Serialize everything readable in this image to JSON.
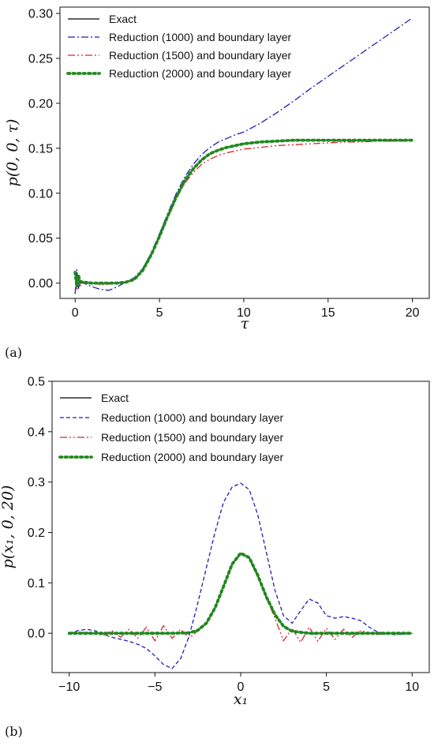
{
  "chart_data": [
    {
      "type": "line",
      "panel_label": "(a)",
      "xlabel": "τ",
      "ylabel": "p(0, 0, τ)",
      "xlim": [
        -0.9,
        21.0
      ],
      "ylim": [
        -0.017,
        0.307
      ],
      "xticks": [
        0,
        5,
        10,
        15,
        20
      ],
      "xtick_labels": [
        "0",
        "5",
        "10",
        "15",
        "20"
      ],
      "yticks": [
        0.0,
        0.05,
        0.1,
        0.15,
        0.2,
        0.25,
        0.3
      ],
      "ytick_labels": [
        "0.00",
        "0.05",
        "0.10",
        "0.15",
        "0.20",
        "0.25",
        "0.30"
      ],
      "legend_position": "upper-left",
      "grid": false,
      "series": [
        {
          "name": "Exact",
          "color": "#000000",
          "style": "solid",
          "x": [
            0,
            0.5,
            1,
            1.5,
            2,
            2.5,
            3,
            3.5,
            4,
            4.5,
            5,
            5.5,
            6,
            6.5,
            7,
            7.5,
            8,
            8.5,
            9,
            9.5,
            10,
            11,
            12,
            13,
            14,
            15,
            16,
            17,
            18,
            19,
            20
          ],
          "y": [
            0.0,
            0.0,
            0.0,
            0.0,
            0.0,
            0.0,
            0.001,
            0.004,
            0.014,
            0.031,
            0.052,
            0.075,
            0.096,
            0.114,
            0.127,
            0.137,
            0.144,
            0.148,
            0.151,
            0.153,
            0.155,
            0.157,
            0.158,
            0.159,
            0.159,
            0.159,
            0.159,
            0.159,
            0.159,
            0.159,
            0.159
          ]
        },
        {
          "name": "Reduction (1000) and boundary layer",
          "color": "#1f1fb4",
          "style": "dashdot",
          "x": [
            0,
            0.1,
            0.2,
            0.3,
            0.5,
            1,
            1.5,
            2,
            2.5,
            3,
            3.5,
            4,
            4.5,
            5,
            5.5,
            6,
            6.5,
            7,
            7.5,
            8,
            8.5,
            9,
            9.5,
            10,
            11,
            12,
            13,
            14,
            15,
            16,
            17,
            18,
            19,
            20
          ],
          "y": [
            -0.012,
            0.015,
            -0.006,
            0.004,
            0.0,
            -0.004,
            -0.007,
            -0.008,
            -0.004,
            0.001,
            0.006,
            0.016,
            0.033,
            0.055,
            0.078,
            0.1,
            0.118,
            0.132,
            0.143,
            0.151,
            0.157,
            0.161,
            0.165,
            0.168,
            0.178,
            0.19,
            0.203,
            0.217,
            0.23,
            0.243,
            0.256,
            0.269,
            0.282,
            0.295
          ]
        },
        {
          "name": "Reduction (1500) and boundary layer",
          "color": "#d62728",
          "style": "dashdotdot",
          "x": [
            0,
            0.1,
            0.2,
            0.3,
            0.5,
            1,
            1.5,
            2,
            2.5,
            3,
            3.5,
            4,
            4.5,
            5,
            5.5,
            6,
            6.5,
            7,
            7.5,
            8,
            8.5,
            9,
            9.5,
            10,
            11,
            12,
            13,
            14,
            15,
            16,
            17,
            18,
            19,
            20
          ],
          "y": [
            0.006,
            -0.008,
            0.01,
            -0.003,
            0.002,
            0.0,
            -0.002,
            -0.001,
            0.0,
            0.001,
            0.005,
            0.014,
            0.03,
            0.051,
            0.073,
            0.094,
            0.111,
            0.123,
            0.132,
            0.138,
            0.142,
            0.145,
            0.147,
            0.149,
            0.151,
            0.153,
            0.154,
            0.155,
            0.156,
            0.157,
            0.157,
            0.158,
            0.158,
            0.158
          ]
        },
        {
          "name": "Reduction (2000) and boundary layer",
          "color": "#1e8a1e",
          "style": "dotted",
          "x": [
            0,
            0.1,
            0.2,
            0.3,
            0.5,
            1,
            1.5,
            2,
            2.5,
            3,
            3.5,
            4,
            4.5,
            5,
            5.5,
            6,
            6.5,
            7,
            7.5,
            8,
            8.5,
            9,
            9.5,
            10,
            11,
            12,
            13,
            14,
            15,
            16,
            17,
            18,
            19,
            20
          ],
          "y": [
            0.012,
            -0.004,
            0.008,
            0.002,
            0.001,
            0.0,
            0.0,
            0.0,
            0.0,
            0.001,
            0.004,
            0.014,
            0.031,
            0.052,
            0.075,
            0.096,
            0.114,
            0.127,
            0.137,
            0.144,
            0.148,
            0.151,
            0.153,
            0.155,
            0.157,
            0.158,
            0.159,
            0.159,
            0.159,
            0.159,
            0.159,
            0.159,
            0.159,
            0.159
          ]
        }
      ]
    },
    {
      "type": "line",
      "panel_label": "(b)",
      "xlabel": "x₁",
      "ylabel": "p(x₁, 0, 20)",
      "xlim": [
        -11.0,
        11.0
      ],
      "ylim": [
        -0.078,
        0.5
      ],
      "xticks": [
        -10,
        -5,
        0,
        5,
        10
      ],
      "xtick_labels": [
        "−10",
        "−5",
        "0",
        "5",
        "10"
      ],
      "yticks": [
        0.0,
        0.1,
        0.2,
        0.3,
        0.4,
        0.5
      ],
      "ytick_labels": [
        "0.0",
        "0.1",
        "0.2",
        "0.3",
        "0.4",
        "0.5"
      ],
      "legend_position": "upper-left",
      "grid": false,
      "series": [
        {
          "name": "Exact",
          "color": "#000000",
          "style": "solid",
          "x": [
            -10,
            -8,
            -6,
            -4,
            -3,
            -2.5,
            -2,
            -1.5,
            -1,
            -0.5,
            0,
            0.5,
            1,
            1.5,
            2,
            2.5,
            3,
            4,
            6,
            8,
            10
          ],
          "y": [
            0.0,
            0.0,
            0.0,
            0.0,
            0.001,
            0.006,
            0.02,
            0.05,
            0.093,
            0.137,
            0.159,
            0.15,
            0.115,
            0.072,
            0.037,
            0.014,
            0.004,
            0.0,
            0.0,
            0.0,
            0.0
          ]
        },
        {
          "name": "Reduction (1000) and boundary layer",
          "color": "#1f1fb4",
          "style": "dashed",
          "x": [
            -10,
            -9.5,
            -9,
            -8.5,
            -8,
            -7.5,
            -7,
            -6.5,
            -6,
            -5.5,
            -5,
            -4.5,
            -4,
            -3.5,
            -3,
            -2.5,
            -2,
            -1.5,
            -1,
            -0.5,
            0,
            0.5,
            1,
            1.5,
            2,
            2.5,
            3,
            3.5,
            4,
            4.5,
            5,
            5.5,
            6,
            6.5,
            7,
            7.5,
            8,
            9,
            10
          ],
          "y": [
            0.0,
            0.005,
            0.008,
            0.005,
            -0.002,
            -0.008,
            -0.012,
            -0.016,
            -0.022,
            -0.03,
            -0.045,
            -0.062,
            -0.07,
            -0.05,
            -0.005,
            0.06,
            0.13,
            0.2,
            0.26,
            0.29,
            0.298,
            0.285,
            0.235,
            0.16,
            0.085,
            0.035,
            0.02,
            0.045,
            0.068,
            0.06,
            0.035,
            0.03,
            0.033,
            0.03,
            0.025,
            0.012,
            0.002,
            -0.003,
            0.0
          ]
        },
        {
          "name": "Reduction (1500) and boundary layer",
          "color": "#d62728",
          "style": "dashdotdot",
          "x": [
            -10,
            -9,
            -8,
            -7.5,
            -7,
            -6.5,
            -6,
            -5.5,
            -5,
            -4.5,
            -4,
            -3.5,
            -3,
            -2.5,
            -2,
            -1.5,
            -1,
            -0.5,
            0,
            0.5,
            1,
            1.5,
            2,
            2.5,
            3,
            3.5,
            4,
            4.5,
            5,
            5.5,
            6,
            6.5,
            7,
            8,
            9,
            10
          ],
          "y": [
            0.0,
            0.002,
            -0.004,
            0.005,
            -0.008,
            0.008,
            -0.01,
            0.012,
            -0.015,
            0.015,
            -0.01,
            0.008,
            -0.01,
            0.005,
            0.02,
            0.05,
            0.093,
            0.137,
            0.156,
            0.148,
            0.112,
            0.07,
            0.03,
            -0.015,
            0.01,
            -0.018,
            0.012,
            -0.016,
            0.01,
            -0.012,
            0.008,
            -0.008,
            0.005,
            -0.003,
            0.001,
            0.0
          ]
        },
        {
          "name": "Reduction (2000) and boundary layer",
          "color": "#1e8a1e",
          "style": "dotted",
          "x": [
            -10,
            -8,
            -6,
            -4,
            -3,
            -2.5,
            -2,
            -1.5,
            -1,
            -0.5,
            0,
            0.5,
            1,
            1.5,
            2,
            2.5,
            3,
            4,
            6,
            8,
            10
          ],
          "y": [
            0.0,
            0.0,
            0.0,
            0.0,
            0.001,
            0.006,
            0.02,
            0.05,
            0.093,
            0.137,
            0.159,
            0.15,
            0.115,
            0.072,
            0.037,
            0.014,
            0.004,
            0.0,
            0.0,
            0.0,
            0.0
          ]
        }
      ]
    }
  ]
}
